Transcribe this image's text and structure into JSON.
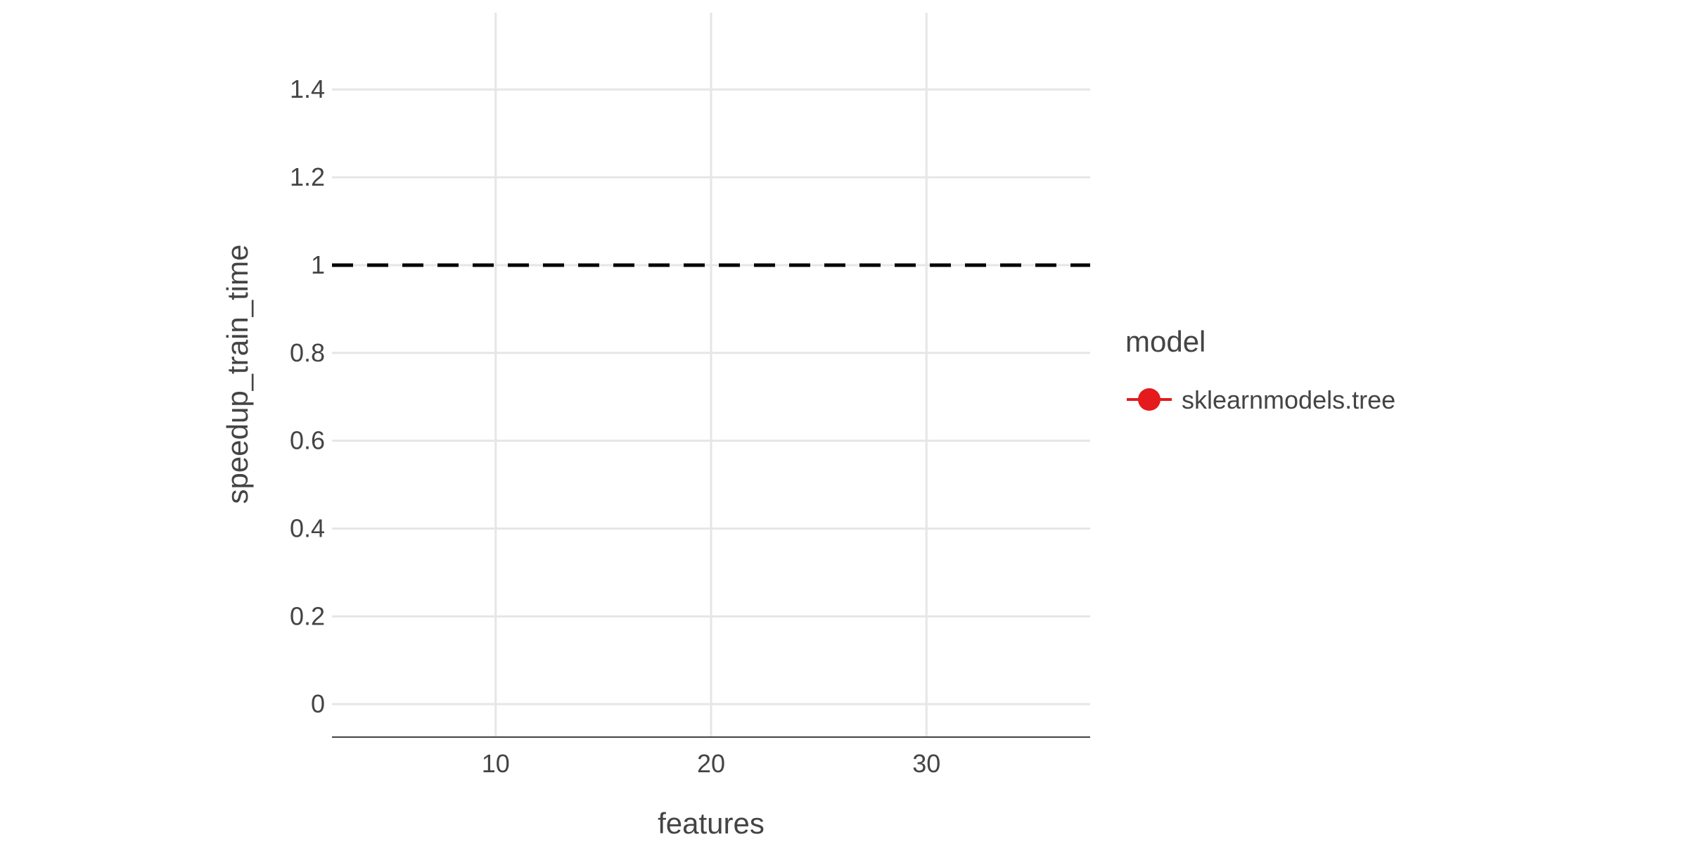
{
  "chart_data": {
    "type": "line",
    "title": "",
    "xlabel": "features",
    "ylabel": "speedup_train_time",
    "xlim": [
      2.4,
      37.6
    ],
    "ylim": [
      -0.075,
      1.575
    ],
    "xticks": [
      10,
      20,
      30
    ],
    "xtick_labels": [
      "10",
      "20",
      "30"
    ],
    "yticks": [
      0,
      0.2,
      0.4,
      0.6,
      0.8,
      1,
      1.2,
      1.4
    ],
    "ytick_labels": [
      "0",
      "0.2",
      "0.4",
      "0.6",
      "0.8",
      "1",
      "1.2",
      "1.4"
    ],
    "reference_line": {
      "y": 1,
      "style": "dashed",
      "color": "#000000"
    },
    "grid": true,
    "legend": {
      "title": "model",
      "placement": "right"
    },
    "series": [
      {
        "name": "sklearnmodels.tree",
        "color": "#e41a1c",
        "x": [],
        "y": []
      }
    ]
  }
}
